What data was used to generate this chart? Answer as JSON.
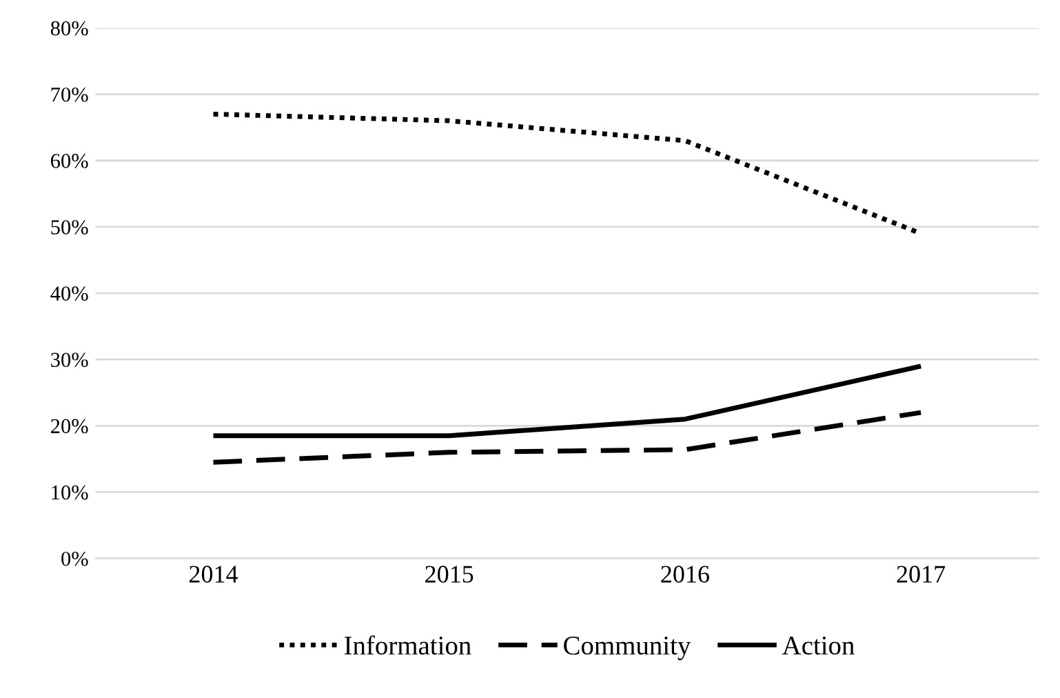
{
  "chart_data": {
    "type": "line",
    "categories": [
      "2014",
      "2015",
      "2016",
      "2017"
    ],
    "series": [
      {
        "name": "Information",
        "color": "#000000",
        "line_style": "dotted",
        "values": [
          67,
          66,
          63,
          49
        ]
      },
      {
        "name": "Community",
        "color": "#000000",
        "line_style": "dashed",
        "values": [
          14.5,
          16,
          16.4,
          22
        ]
      },
      {
        "name": "Action",
        "color": "#000000",
        "line_style": "solid",
        "values": [
          18.5,
          18.5,
          21,
          29
        ]
      }
    ],
    "ylim": [
      0,
      80
    ],
    "yticks": [
      {
        "value": 0,
        "label": "0%"
      },
      {
        "value": 10,
        "label": "10%"
      },
      {
        "value": 20,
        "label": "20%"
      },
      {
        "value": 30,
        "label": "30%"
      },
      {
        "value": 40,
        "label": "40%"
      },
      {
        "value": 50,
        "label": "50%"
      },
      {
        "value": 60,
        "label": "60%"
      },
      {
        "value": 70,
        "label": "70%"
      },
      {
        "value": 80,
        "label": "80%"
      }
    ],
    "grid": "y",
    "legend": "bottom"
  }
}
